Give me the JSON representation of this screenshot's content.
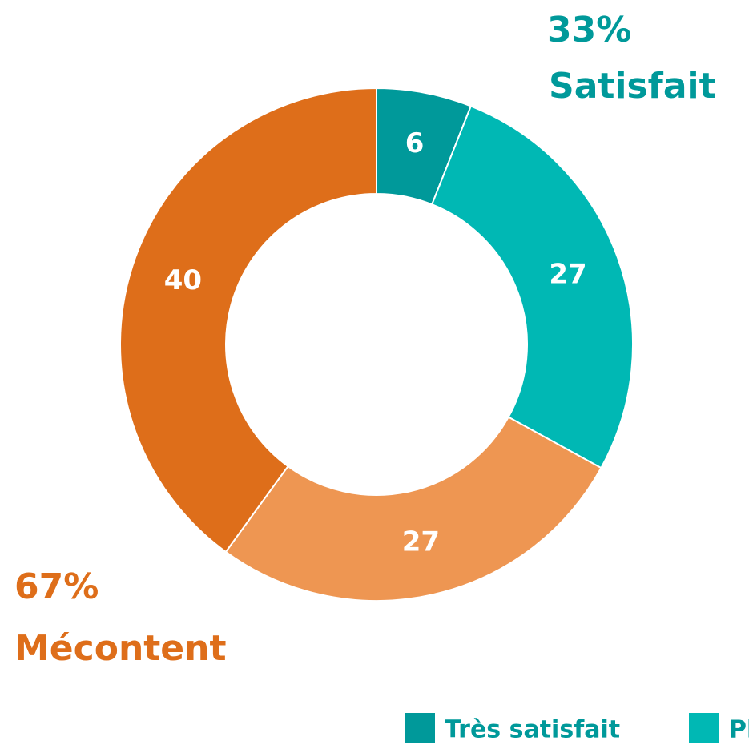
{
  "chart_data": {
    "type": "donut",
    "categories": [
      "Très satisfait",
      "Pl",
      null,
      null
    ],
    "values": [
      6,
      27,
      27,
      40
    ],
    "colors": [
      "#00999a",
      "#00b8b4",
      "#ee9652",
      "#de6e1a"
    ],
    "group_labels": [
      {
        "value": 33,
        "label": "33%",
        "name": "Satisfait",
        "color": "#00999a"
      },
      {
        "value": 67,
        "label": "67%",
        "name": "Mécontent",
        "color": "#de6e1a"
      }
    ]
  }
}
